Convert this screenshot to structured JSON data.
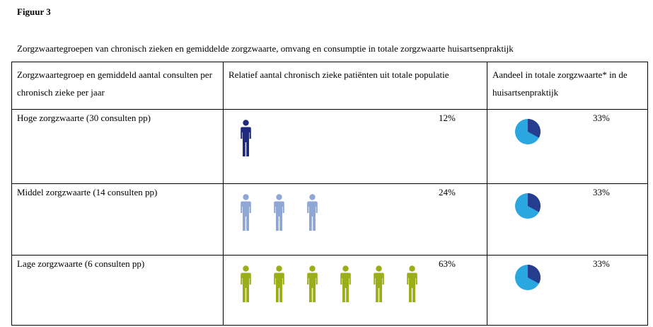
{
  "figure_title": "Figuur 3",
  "caption": "Zorgzwaartegroepen van chronisch zieken en gemiddelde zorgzwaarte, omvang en consumptie in totale zorgzwaarte huisartsenpraktijk",
  "colors": {
    "high": "#1f2a7c",
    "middle": "#8fa7d4",
    "low": "#9aae1a",
    "pie_light": "#2aa6e0",
    "pie_dark": "#253c8f"
  },
  "table": {
    "headers": [
      "Zorgzwaartegroep en gemiddeld aantal consulten per chronisch zieke per jaar",
      "Relatief aantal chronisch zieke patiënten uit totale populatie",
      "Aandeel in totale zorgzwaarte* in de huisartsenpraktijk"
    ],
    "rows": [
      {
        "group": "Hoge zorgzwaarte (30 consulten pp)",
        "population_pct": "12%",
        "care_share_pct": "33%",
        "icon_count": 1,
        "icon_color": "#1f2a7c"
      },
      {
        "group": "Middel zorgzwaarte (14 consulten pp)",
        "population_pct": "24%",
        "care_share_pct": "33%",
        "icon_count": 3,
        "icon_color": "#8fa7d4"
      },
      {
        "group": "Lage zorgzwaarte (6 consulten pp)",
        "population_pct": "63%",
        "care_share_pct": "33%",
        "icon_count": 6,
        "icon_color": "#9aae1a"
      }
    ]
  },
  "icons": {
    "person": "person-icon",
    "pie": "pie-chart-icon"
  }
}
